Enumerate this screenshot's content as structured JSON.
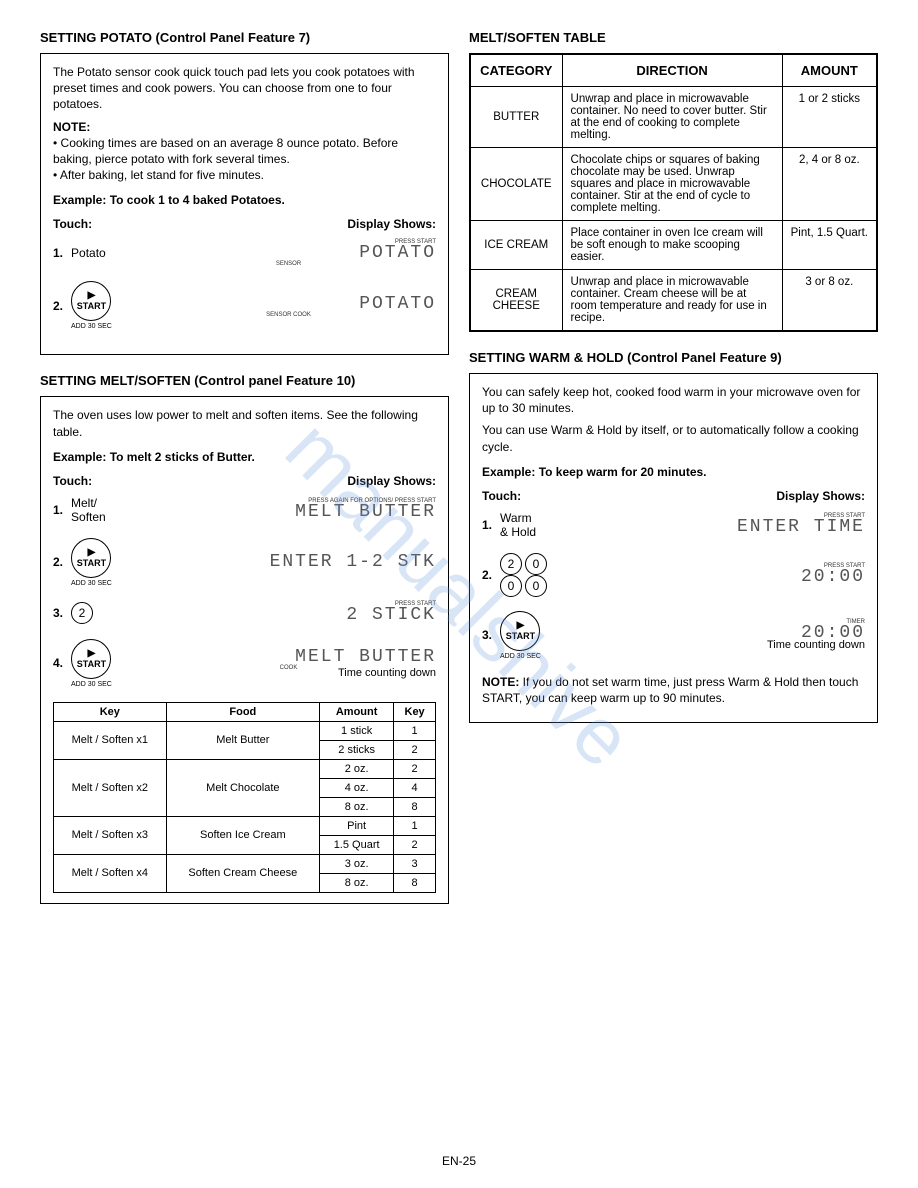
{
  "watermark": "manualshive",
  "page_number": "EN-25",
  "left_column": {
    "potato": {
      "heading": "SETTING POTATO (Control Panel Feature 7)",
      "intro": "The Potato sensor cook quick touch pad lets you cook potatoes with preset times and cook powers. You can choose from one to four potatoes.",
      "note_label": "NOTE:",
      "note_bullets": [
        "Cooking times are based on an average 8 ounce potato. Before baking, pierce potato with fork several times.",
        "After baking, let stand for five minutes."
      ],
      "example": "Example: To cook 1 to 4 baked Potatoes.",
      "touch_label": "Touch:",
      "display_label": "Display Shows:",
      "steps": [
        {
          "num": "1.",
          "label": "Potato",
          "top_hint": "PRESS START",
          "lcd": "POTATO",
          "bottom_hint": "SENSOR"
        },
        {
          "num": "2.",
          "label": "__START__",
          "top_hint": "",
          "lcd": "POTATO",
          "bottom_hint": "SENSOR COOK"
        }
      ]
    },
    "melt_soften": {
      "heading": "SETTING MELT/SOFTEN (Control panel Feature 10)",
      "intro": "The oven uses low power to melt and soften items. See the following table.",
      "example": "Example: To melt 2 sticks of Butter.",
      "touch_label": "Touch:",
      "display_label": "Display Shows:",
      "steps": [
        {
          "num": "1.",
          "label": "Melt/\nSoften",
          "top_hint": "PRESS AGAIN FOR OPTIONS/  PRESS START",
          "lcd": "MELT  BUTTER",
          "bottom_hint": ""
        },
        {
          "num": "2.",
          "label": "__START__",
          "top_hint": "",
          "lcd": "ENTER  1-2 STK",
          "bottom_hint": ""
        },
        {
          "num": "3.",
          "label": "__NUM2__",
          "top_hint": "PRESS START",
          "lcd": "2 STICK",
          "bottom_hint": ""
        },
        {
          "num": "4.",
          "label": "__START__",
          "top_hint": "",
          "lcd": "MELT  BUTTER",
          "bottom_hint": "COOK",
          "countdown": "Time counting down"
        }
      ],
      "table": {
        "headers": [
          "Key",
          "Food",
          "Amount",
          "Key"
        ],
        "rows": [
          {
            "key": "Melt / Soften x1",
            "food": "Melt Butter",
            "sub": [
              [
                "1 stick",
                "1"
              ],
              [
                "2 sticks",
                "2"
              ]
            ]
          },
          {
            "key": "Melt / Soften x2",
            "food": "Melt Chocolate",
            "sub": [
              [
                "2 oz.",
                "2"
              ],
              [
                "4 oz.",
                "4"
              ],
              [
                "8 oz.",
                "8"
              ]
            ]
          },
          {
            "key": "Melt / Soften x3",
            "food": "Soften Ice Cream",
            "sub": [
              [
                "Pint",
                "1"
              ],
              [
                "1.5 Quart",
                "2"
              ]
            ]
          },
          {
            "key": "Melt / Soften x4",
            "food": "Soften Cream Cheese",
            "sub": [
              [
                "3 oz.",
                "3"
              ],
              [
                "8 oz.",
                "8"
              ]
            ]
          }
        ]
      }
    }
  },
  "right_column": {
    "melt_table": {
      "heading": "MELT/SOFTEN TABLE",
      "headers": [
        "CATEGORY",
        "DIRECTION",
        "AMOUNT"
      ],
      "rows": [
        {
          "cat": "BUTTER",
          "dir": "Unwrap and place in microwavable container. No need to cover butter. Stir at the end of cooking to complete melting.",
          "amt": "1 or 2 sticks"
        },
        {
          "cat": "CHOCOLATE",
          "dir": "Chocolate chips or squares of baking chocolate may be used. Unwrap squares and place in microwavable container. Stir at the end of cycle to complete melting.",
          "amt": "2, 4 or 8 oz."
        },
        {
          "cat": "ICE CREAM",
          "dir": "Place container in oven Ice cream will be soft enough to make scooping easier.",
          "amt": "Pint, 1.5 Quart."
        },
        {
          "cat": "CREAM CHEESE",
          "dir": "Unwrap and place in microwavable container. Cream cheese will be at room temperature and ready for use in recipe.",
          "amt": "3 or 8 oz."
        }
      ]
    },
    "warm_hold": {
      "heading": "SETTING WARM & HOLD (Control Panel Feature 9)",
      "intro1": "You can safely keep hot, cooked food warm in your microwave oven for up to 30 minutes.",
      "intro2": "You can use Warm & Hold by itself, or to automatically follow a cooking cycle.",
      "example": "Example: To keep warm for 20 minutes.",
      "touch_label": "Touch:",
      "display_label": "Display Shows:",
      "steps": [
        {
          "num": "1.",
          "label": "Warm\n& Hold",
          "top_hint": "PRESS START",
          "lcd": "ENTER TIME",
          "bottom_hint": ""
        },
        {
          "num": "2.",
          "label": "__NUMS_2000__",
          "top_hint": "PRESS START",
          "lcd": "20:00",
          "bottom_hint": ""
        },
        {
          "num": "3.",
          "label": "__START__",
          "top_hint": "TIMER",
          "lcd": "20:00",
          "bottom_hint": "",
          "countdown": "Time counting down"
        }
      ],
      "note_label": "NOTE:",
      "note_text": " If you do not set warm time, just press Warm & Hold then touch START, you can keep warm up to 90 minutes."
    }
  },
  "start_button": {
    "label": "START",
    "caption": "ADD 30 SEC"
  }
}
